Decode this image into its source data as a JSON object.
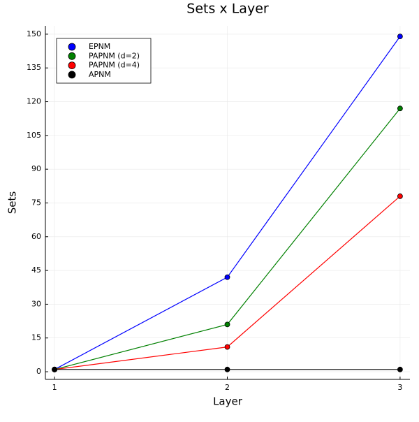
{
  "chart_data": {
    "type": "line",
    "title": "Sets x Layer",
    "xlabel": "Layer",
    "ylabel": "Sets",
    "x": [
      1,
      2,
      3
    ],
    "series": [
      {
        "name": "EPNM",
        "color": "#0000ff",
        "values": [
          1,
          42,
          149
        ]
      },
      {
        "name": "PAPNM (d=2)",
        "color": "#008000",
        "values": [
          1,
          21,
          117
        ]
      },
      {
        "name": "PAPNM (d=4)",
        "color": "#ff0000",
        "values": [
          1,
          11,
          78
        ]
      },
      {
        "name": "APNM",
        "color": "#000000",
        "values": [
          1,
          1,
          1
        ]
      }
    ],
    "xlim": [
      0.947,
      3.057
    ],
    "xticks": [
      1,
      2,
      3
    ],
    "ylim": [
      -3.4,
      153.7
    ],
    "yticks": [
      0,
      15,
      30,
      45,
      60,
      75,
      90,
      105,
      120,
      135,
      150
    ],
    "grid": true,
    "legend": "top-left"
  }
}
